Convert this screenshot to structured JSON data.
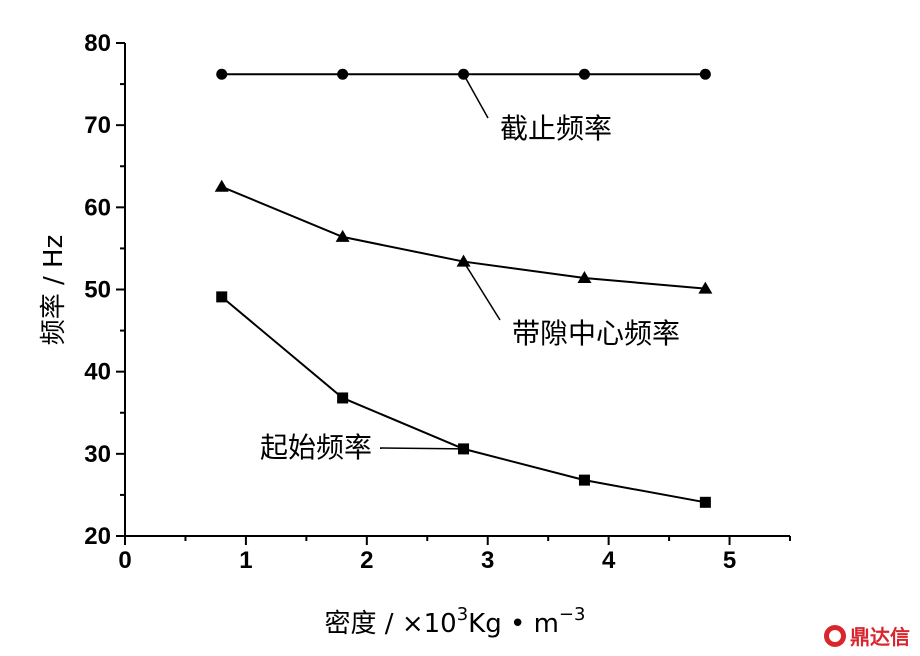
{
  "chart_data": {
    "type": "line",
    "xlabel": "密度 / ×10",
    "xlabel_sup": "3",
    "xlabel_unit": "Kg • m",
    "xlabel_unit_sup": "−3",
    "ylabel": "频率 / Hz",
    "xlim": [
      0,
      5.5
    ],
    "ylim": [
      20,
      80
    ],
    "xticks": [
      0,
      1,
      2,
      3,
      4,
      5
    ],
    "yticks": [
      20,
      30,
      40,
      50,
      60,
      70,
      80
    ],
    "x": [
      0.8,
      1.8,
      2.8,
      3.8,
      4.8
    ],
    "series": [
      {
        "name": "截止频率",
        "marker": "circle",
        "values": [
          76.2,
          76.2,
          76.2,
          76.2,
          76.2
        ]
      },
      {
        "name": "带隙中心频率",
        "marker": "triangle",
        "values": [
          62.5,
          56.4,
          53.4,
          51.4,
          50.1
        ]
      },
      {
        "name": "起始频率",
        "marker": "square",
        "values": [
          49.1,
          36.8,
          30.6,
          26.8,
          24.1
        ]
      }
    ],
    "grid": false,
    "color": "#000000"
  },
  "watermark": {
    "text": "鼎达信"
  }
}
